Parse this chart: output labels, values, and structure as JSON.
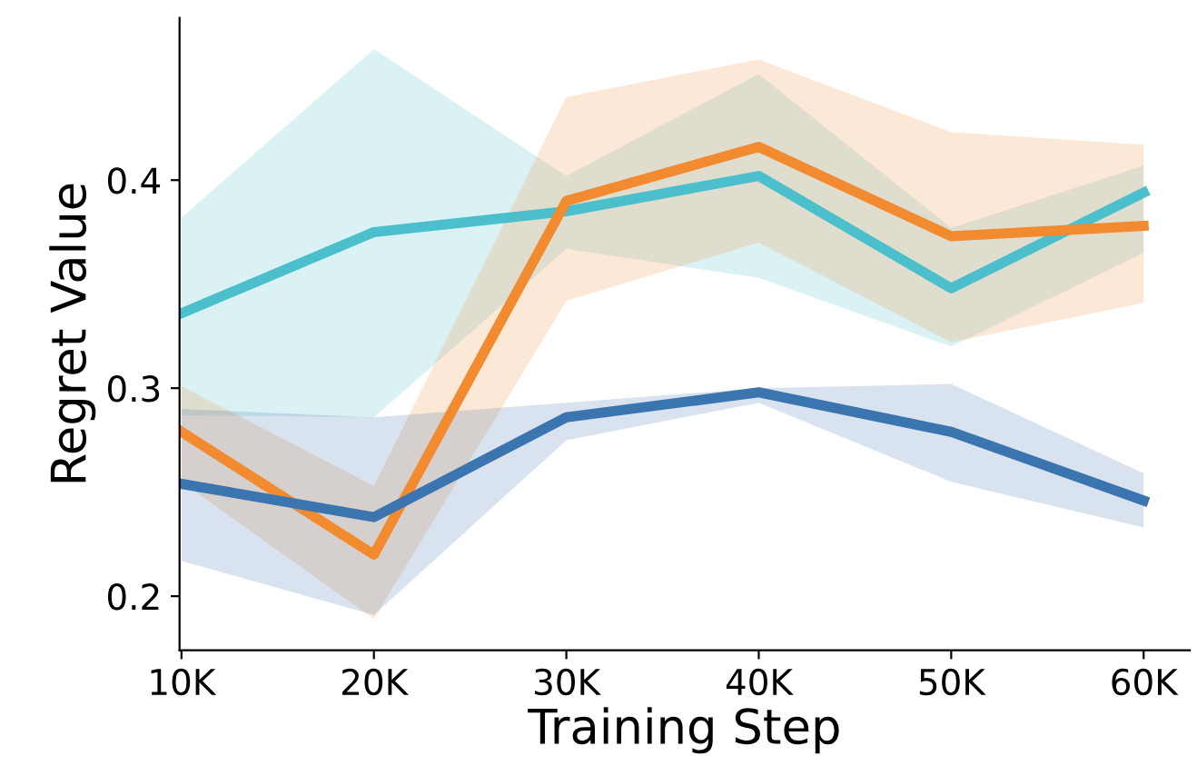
{
  "chart_data": {
    "type": "line",
    "xlabel": "Training Step",
    "ylabel": "Regret Value",
    "x": [
      10000,
      20000,
      30000,
      40000,
      50000,
      60000
    ],
    "series": [
      {
        "color": "#4bbfcc",
        "values": [
          0.336,
          0.375,
          0.385,
          0.402,
          0.348,
          0.394
        ],
        "lower": [
          0.287,
          0.286,
          0.367,
          0.353,
          0.32,
          0.365
        ],
        "upper": [
          0.382,
          0.463,
          0.402,
          0.451,
          0.377,
          0.407
        ]
      },
      {
        "color": "#f28a30",
        "values": [
          0.279,
          0.22,
          0.39,
          0.416,
          0.373,
          0.378
        ],
        "lower": [
          0.255,
          0.189,
          0.342,
          0.37,
          0.322,
          0.341
        ],
        "upper": [
          0.301,
          0.253,
          0.44,
          0.458,
          0.423,
          0.417
        ]
      },
      {
        "color": "#3b75af",
        "values": [
          0.254,
          0.238,
          0.286,
          0.298,
          0.279,
          0.246
        ],
        "lower": [
          0.217,
          0.191,
          0.275,
          0.293,
          0.255,
          0.233
        ],
        "upper": [
          0.29,
          0.286,
          0.293,
          0.3,
          0.302,
          0.259
        ]
      }
    ],
    "xlim": [
      9900,
      62400
    ],
    "ylim": [
      0.174,
      0.478
    ],
    "xticks": [
      {
        "value": 10000,
        "label": "10K"
      },
      {
        "value": 20000,
        "label": "20K"
      },
      {
        "value": 30000,
        "label": "30K"
      },
      {
        "value": 40000,
        "label": "40K"
      },
      {
        "value": 50000,
        "label": "50K"
      },
      {
        "value": 60000,
        "label": "60K"
      }
    ],
    "yticks": [
      0.2,
      0.3,
      0.4
    ],
    "grid": false,
    "legend": false,
    "marker": "none",
    "line_style": "solid"
  }
}
